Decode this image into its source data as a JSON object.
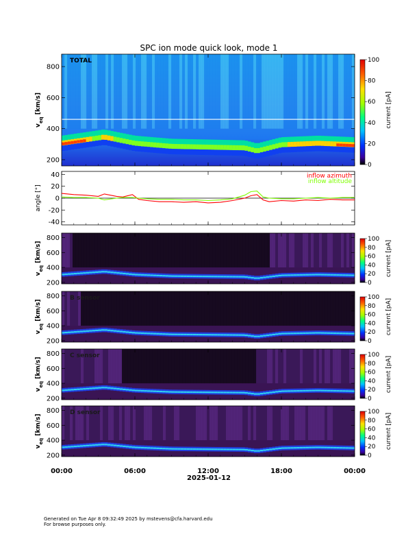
{
  "figure": {
    "title": "SPC ion mode quick look, mode 1",
    "x_date_label": "2025-01-12"
  },
  "footer": {
    "line1": "Generated on Tue Apr  8 09:32:49 2025 by mstevens@cfa.harvard.edu",
    "line2": "For browse purposes only."
  },
  "colors": {
    "azimuth": "#ff0000",
    "altitude": "#7fff00",
    "total_background": "#1e8cf0",
    "sensor_background": "#3a1454"
  },
  "chart_data": [
    {
      "type": "heatmap",
      "panel": "total",
      "label": "TOTAL",
      "ylabel": "v_eq [km/s]",
      "ylim": [
        160,
        880
      ],
      "yticks": [
        200,
        400,
        600,
        800
      ],
      "xticks": [
        "00:00",
        "06:00",
        "12:00",
        "18:00",
        "00:00"
      ],
      "colorbar": {
        "label": "current [pA]",
        "range": [
          0,
          100
        ],
        "ticks": [
          0,
          20,
          40,
          60,
          80,
          100
        ]
      },
      "ridge_speed_kms": [
        {
          "hour": 0,
          "v": 300
        },
        {
          "hour": 3.5,
          "v": 340
        },
        {
          "hour": 6,
          "v": 300
        },
        {
          "hour": 9,
          "v": 280
        },
        {
          "hour": 12,
          "v": 275
        },
        {
          "hour": 15,
          "v": 270
        },
        {
          "hour": 16,
          "v": 250
        },
        {
          "hour": 18,
          "v": 290
        },
        {
          "hour": 21,
          "v": 300
        },
        {
          "hour": 24,
          "v": 290
        }
      ]
    },
    {
      "type": "line",
      "panel": "angle",
      "ylabel": "angle [°]",
      "ylim": [
        -45,
        45
      ],
      "yticks": [
        -40,
        -20,
        0,
        20,
        40
      ],
      "series": [
        {
          "name": "inflow azimuth",
          "color": "#ff0000",
          "x": [
            0,
            1,
            2,
            3,
            3.5,
            4.5,
            5,
            5.8,
            6.3,
            7,
            8,
            9,
            10,
            11,
            12,
            13,
            14,
            15,
            15.5,
            16,
            16.5,
            17,
            18,
            19,
            20,
            21,
            22,
            23,
            24
          ],
          "values": [
            8,
            6,
            5,
            3,
            7,
            3,
            2,
            6,
            -2,
            -4,
            -6,
            -6,
            -7,
            -6,
            -8,
            -7,
            -4,
            0,
            4,
            6,
            -3,
            -6,
            -4,
            -5,
            -3,
            -4,
            -2,
            -3,
            -3
          ]
        },
        {
          "name": "inflow altitude",
          "color": "#7fff00",
          "x": [
            0,
            1,
            2,
            3,
            3.5,
            4.5,
            5,
            5.8,
            6.3,
            7,
            8,
            9,
            10,
            11,
            12,
            13,
            14,
            15,
            15.5,
            16,
            16.5,
            17,
            18,
            19,
            20,
            21,
            22,
            23,
            24
          ],
          "values": [
            2,
            1,
            1,
            0,
            -3,
            0,
            1,
            1,
            0,
            -1,
            -2,
            -2,
            -3,
            -3,
            -4,
            -3,
            -1,
            5,
            11,
            12,
            2,
            0,
            -1,
            -1,
            0,
            1,
            0,
            1,
            1
          ]
        }
      ]
    },
    {
      "type": "heatmap",
      "panel": "A sensor",
      "label": "",
      "ylabel": "v_eq [km/s]",
      "ylim": [
        180,
        860
      ],
      "yticks": [
        200,
        400,
        600,
        800
      ],
      "colorbar": {
        "label": "current [pA]",
        "range": [
          0,
          100
        ],
        "ticks": [
          0,
          20,
          40,
          60,
          80,
          100
        ]
      }
    },
    {
      "type": "heatmap",
      "panel": "B sensor",
      "label": "B sensor",
      "ylabel": "v_eq [km/s]",
      "ylim": [
        180,
        860
      ],
      "yticks": [
        200,
        400,
        600,
        800
      ],
      "colorbar": {
        "label": "current [pA]",
        "range": [
          0,
          100
        ],
        "ticks": [
          0,
          20,
          40,
          60,
          80,
          100
        ]
      }
    },
    {
      "type": "heatmap",
      "panel": "C sensor",
      "label": "C sensor",
      "ylabel": "v_eq [km/s]",
      "ylim": [
        180,
        860
      ],
      "yticks": [
        200,
        400,
        600,
        800
      ],
      "colorbar": {
        "label": "current [pA]",
        "range": [
          0,
          100
        ],
        "ticks": [
          0,
          20,
          40,
          60,
          80,
          100
        ]
      }
    },
    {
      "type": "heatmap",
      "panel": "D sensor",
      "label": "D sensor",
      "ylabel": "v_eq [km/s]",
      "ylim": [
        180,
        860
      ],
      "yticks": [
        200,
        400,
        600,
        800
      ],
      "colorbar": {
        "label": "current [pA]",
        "range": [
          0,
          100
        ],
        "ticks": [
          0,
          20,
          40,
          60,
          80,
          100
        ]
      }
    }
  ]
}
